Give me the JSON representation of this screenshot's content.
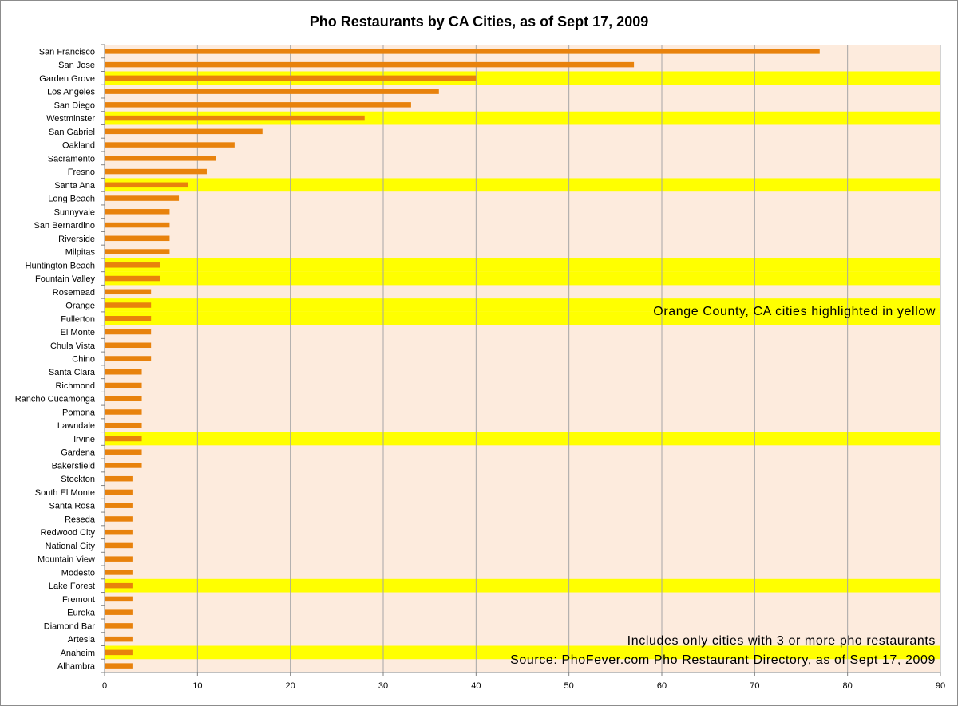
{
  "chart_data": {
    "type": "bar",
    "orientation": "horizontal",
    "title": "Pho Restaurants by CA Cities, as of Sept 17, 2009",
    "xlabel": "",
    "ylabel": "",
    "xlim": [
      0,
      90
    ],
    "x_ticks": [
      0,
      10,
      20,
      30,
      40,
      50,
      60,
      70,
      80,
      90
    ],
    "grid": true,
    "legend": "none",
    "categories": [
      "San Francisco",
      "San Jose",
      "Garden Grove",
      "Los Angeles",
      "San Diego",
      "Westminster",
      "San Gabriel",
      "Oakland",
      "Sacramento",
      "Fresno",
      "Santa Ana",
      "Long Beach",
      "Sunnyvale",
      "San Bernardino",
      "Riverside",
      "Milpitas",
      "Huntington Beach",
      "Fountain Valley",
      "Rosemead",
      "Orange",
      "Fullerton",
      "El Monte",
      "Chula Vista",
      "Chino",
      "Santa Clara",
      "Richmond",
      "Rancho Cucamonga",
      "Pomona",
      "Lawndale",
      "Irvine",
      "Gardena",
      "Bakersfield",
      "Stockton",
      "South El Monte",
      "Santa Rosa",
      "Reseda",
      "Redwood City",
      "National City",
      "Mountain View",
      "Modesto",
      "Lake Forest",
      "Fremont",
      "Eureka",
      "Diamond Bar",
      "Artesia",
      "Anaheim",
      "Alhambra"
    ],
    "values": [
      77,
      57,
      40,
      36,
      33,
      28,
      17,
      14,
      12,
      11,
      9,
      8,
      7,
      7,
      7,
      7,
      6,
      6,
      5,
      5,
      5,
      5,
      5,
      5,
      4,
      4,
      4,
      4,
      4,
      4,
      4,
      4,
      3,
      3,
      3,
      3,
      3,
      3,
      3,
      3,
      3,
      3,
      3,
      3,
      3,
      3,
      3
    ],
    "highlighted_categories": [
      "Garden Grove",
      "Westminster",
      "Santa Ana",
      "Huntington Beach",
      "Fountain Valley",
      "Orange",
      "Fullerton",
      "Irvine",
      "Lake Forest",
      "Anaheim"
    ],
    "annotations": {
      "highlight_note": "Orange County, CA cities highlighted in yellow",
      "footnote_1": "Includes only cities with 3 or more pho restaurants",
      "footnote_2": "Source: PhoFever.com Pho Restaurant Directory, as of Sept 17, 2009"
    },
    "colors": {
      "bar": "#E8820C",
      "plot_background": "#FDEBDD",
      "highlight_band": "#FFFF00",
      "grid": "#A6A6A6",
      "axis": "#808080",
      "text": "#000000"
    }
  }
}
